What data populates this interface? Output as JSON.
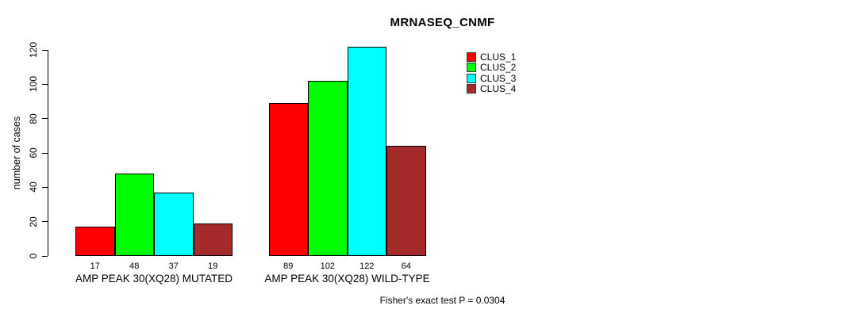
{
  "chart_data": {
    "type": "bar",
    "title": "MRNASEQ_CNMF",
    "ylabel": "number of cases",
    "xlabel": "",
    "ylim": [
      0,
      120
    ],
    "yticks": [
      0,
      20,
      40,
      60,
      80,
      100,
      120
    ],
    "grid": false,
    "legend_position": "top-right",
    "categories": [
      "AMP PEAK 30(XQ28) MUTATED",
      "AMP PEAK 30(XQ28) WILD-TYPE"
    ],
    "series": [
      {
        "name": "CLUS_1",
        "color": "#FF0000",
        "values": [
          17,
          89
        ]
      },
      {
        "name": "CLUS_2",
        "color": "#00FF00",
        "values": [
          48,
          102
        ]
      },
      {
        "name": "CLUS_3",
        "color": "#00FFFF",
        "values": [
          37,
          122
        ]
      },
      {
        "name": "CLUS_4",
        "color": "#A52A2A",
        "values": [
          19,
          64
        ]
      }
    ],
    "bar_value_labels": [
      [
        17,
        48,
        37,
        19
      ],
      [
        89,
        102,
        122,
        64
      ]
    ],
    "note": "Fisher's exact test P = 0.0304"
  }
}
